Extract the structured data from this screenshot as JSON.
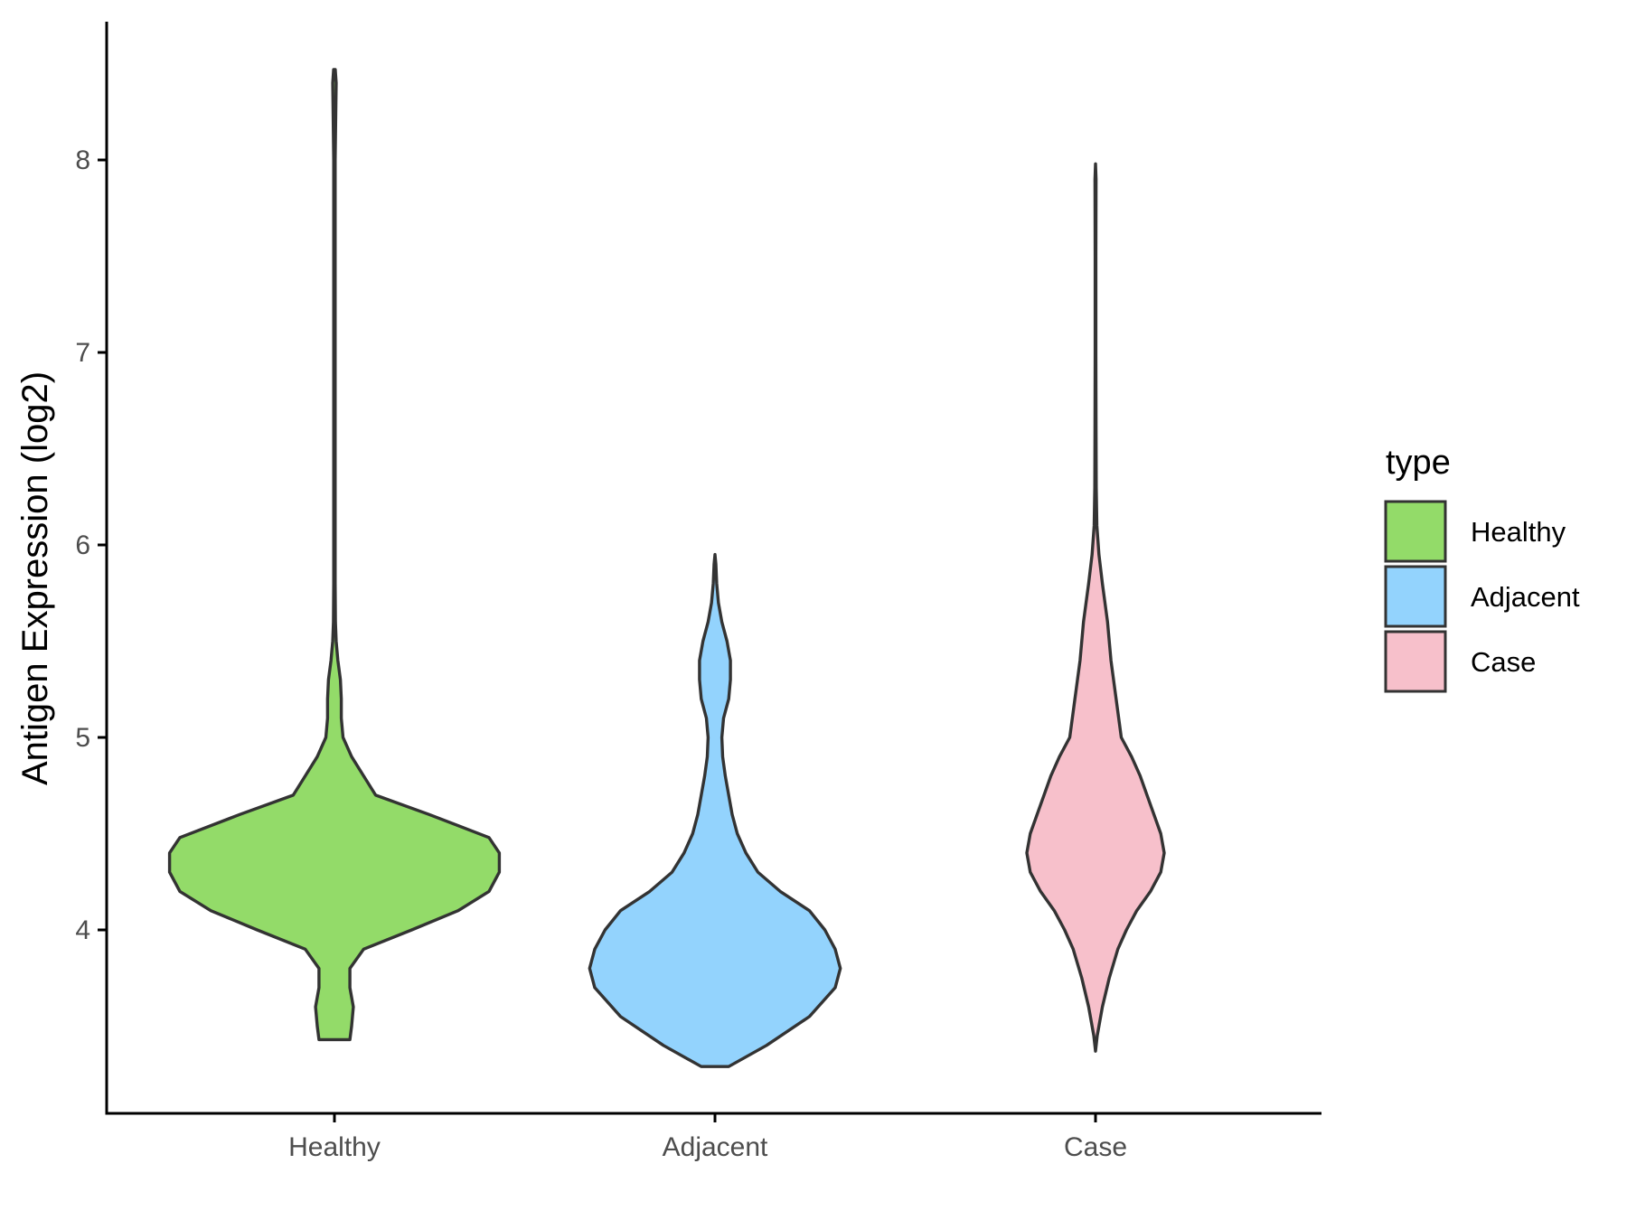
{
  "chart_data": {
    "type": "violin",
    "ylabel": "Antigen Expression (log2)",
    "xlabel": "",
    "categories": [
      "Healthy",
      "Adjacent",
      "Case"
    ],
    "ylim": [
      3.1,
      8.85
    ],
    "yticks": [
      4,
      5,
      6,
      7,
      8
    ],
    "legend": {
      "title": "type",
      "placement": "right",
      "entries": [
        "Healthy",
        "Adjacent",
        "Case"
      ]
    },
    "colors": {
      "Healthy": "#93db69",
      "Adjacent": "#93d3fd",
      "Case": "#f7c0cb"
    },
    "outline_color": "#333333",
    "series": [
      {
        "name": "Healthy",
        "min": 3.43,
        "max": 8.47,
        "density": [
          [
            3.43,
            0.09
          ],
          [
            3.5,
            0.1
          ],
          [
            3.6,
            0.11
          ],
          [
            3.7,
            0.09
          ],
          [
            3.8,
            0.09
          ],
          [
            3.9,
            0.17
          ],
          [
            4.0,
            0.45
          ],
          [
            4.1,
            0.72
          ],
          [
            4.2,
            0.9
          ],
          [
            4.3,
            0.96
          ],
          [
            4.4,
            0.96
          ],
          [
            4.48,
            0.9
          ],
          [
            4.6,
            0.55
          ],
          [
            4.7,
            0.24
          ],
          [
            4.8,
            0.17
          ],
          [
            4.9,
            0.1
          ],
          [
            5.0,
            0.05
          ],
          [
            5.1,
            0.04
          ],
          [
            5.2,
            0.04
          ],
          [
            5.3,
            0.035
          ],
          [
            5.4,
            0.02
          ],
          [
            5.5,
            0.01
          ],
          [
            5.6,
            0.006
          ],
          [
            5.8,
            0.004
          ],
          [
            6.2,
            0.004
          ],
          [
            7.0,
            0.004
          ],
          [
            8.0,
            0.004
          ],
          [
            8.4,
            0.01
          ],
          [
            8.47,
            0.005
          ]
        ]
      },
      {
        "name": "Adjacent",
        "min": 3.29,
        "max": 5.95,
        "density": [
          [
            3.29,
            0.08
          ],
          [
            3.4,
            0.3
          ],
          [
            3.55,
            0.55
          ],
          [
            3.7,
            0.7
          ],
          [
            3.8,
            0.73
          ],
          [
            3.9,
            0.7
          ],
          [
            4.0,
            0.64
          ],
          [
            4.1,
            0.55
          ],
          [
            4.2,
            0.38
          ],
          [
            4.3,
            0.25
          ],
          [
            4.4,
            0.18
          ],
          [
            4.5,
            0.13
          ],
          [
            4.6,
            0.1
          ],
          [
            4.7,
            0.08
          ],
          [
            4.8,
            0.06
          ],
          [
            4.9,
            0.045
          ],
          [
            5.0,
            0.04
          ],
          [
            5.1,
            0.05
          ],
          [
            5.2,
            0.08
          ],
          [
            5.3,
            0.09
          ],
          [
            5.4,
            0.09
          ],
          [
            5.5,
            0.07
          ],
          [
            5.6,
            0.04
          ],
          [
            5.7,
            0.02
          ],
          [
            5.8,
            0.01
          ],
          [
            5.9,
            0.005
          ],
          [
            5.95,
            0.0
          ]
        ]
      },
      {
        "name": "Case",
        "min": 3.37,
        "max": 7.98,
        "density": [
          [
            3.37,
            0.0
          ],
          [
            3.45,
            0.01
          ],
          [
            3.6,
            0.04
          ],
          [
            3.75,
            0.08
          ],
          [
            3.9,
            0.13
          ],
          [
            4.0,
            0.18
          ],
          [
            4.1,
            0.24
          ],
          [
            4.2,
            0.32
          ],
          [
            4.3,
            0.38
          ],
          [
            4.4,
            0.4
          ],
          [
            4.5,
            0.38
          ],
          [
            4.6,
            0.34
          ],
          [
            4.7,
            0.3
          ],
          [
            4.8,
            0.26
          ],
          [
            4.9,
            0.21
          ],
          [
            5.0,
            0.15
          ],
          [
            5.2,
            0.12
          ],
          [
            5.4,
            0.09
          ],
          [
            5.6,
            0.07
          ],
          [
            5.8,
            0.04
          ],
          [
            5.95,
            0.02
          ],
          [
            6.1,
            0.008
          ],
          [
            6.3,
            0.004
          ],
          [
            6.6,
            0.003
          ],
          [
            7.0,
            0.002
          ],
          [
            7.5,
            0.002
          ],
          [
            7.9,
            0.003
          ],
          [
            7.98,
            0.0
          ]
        ]
      }
    ]
  }
}
